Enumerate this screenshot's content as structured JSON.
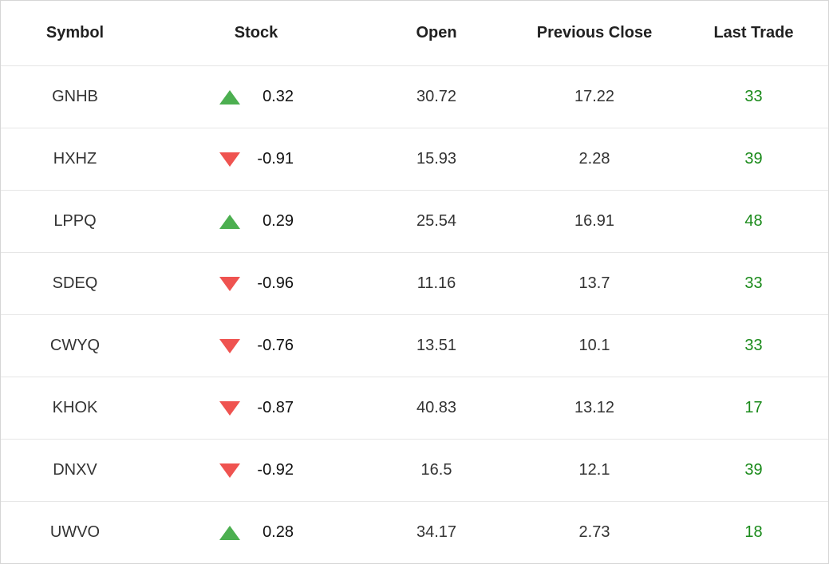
{
  "columns": {
    "symbol": "Symbol",
    "stock": "Stock",
    "open": "Open",
    "previous_close": "Previous Close",
    "last_trade": "Last Trade"
  },
  "colors": {
    "up": "#4caf50",
    "down": "#ef5350",
    "last_trade": "#1a8a1a"
  },
  "rows": [
    {
      "symbol": "GNHB",
      "direction": "up",
      "icon": "triangle-up-icon",
      "change": "0.32",
      "open": "30.72",
      "previous_close": "17.22",
      "last_trade": "33"
    },
    {
      "symbol": "HXHZ",
      "direction": "down",
      "icon": "triangle-down-icon",
      "change": "-0.91",
      "open": "15.93",
      "previous_close": "2.28",
      "last_trade": "39"
    },
    {
      "symbol": "LPPQ",
      "direction": "up",
      "icon": "triangle-up-icon",
      "change": "0.29",
      "open": "25.54",
      "previous_close": "16.91",
      "last_trade": "48"
    },
    {
      "symbol": "SDEQ",
      "direction": "down",
      "icon": "triangle-down-icon",
      "change": "-0.96",
      "open": "11.16",
      "previous_close": "13.7",
      "last_trade": "33"
    },
    {
      "symbol": "CWYQ",
      "direction": "down",
      "icon": "triangle-down-icon",
      "change": "-0.76",
      "open": "13.51",
      "previous_close": "10.1",
      "last_trade": "33"
    },
    {
      "symbol": "KHOK",
      "direction": "down",
      "icon": "triangle-down-icon",
      "change": "-0.87",
      "open": "40.83",
      "previous_close": "13.12",
      "last_trade": "17"
    },
    {
      "symbol": "DNXV",
      "direction": "down",
      "icon": "triangle-down-icon",
      "change": "-0.92",
      "open": "16.5",
      "previous_close": "12.1",
      "last_trade": "39"
    },
    {
      "symbol": "UWVO",
      "direction": "up",
      "icon": "triangle-up-icon",
      "change": "0.28",
      "open": "34.17",
      "previous_close": "2.73",
      "last_trade": "18"
    }
  ]
}
